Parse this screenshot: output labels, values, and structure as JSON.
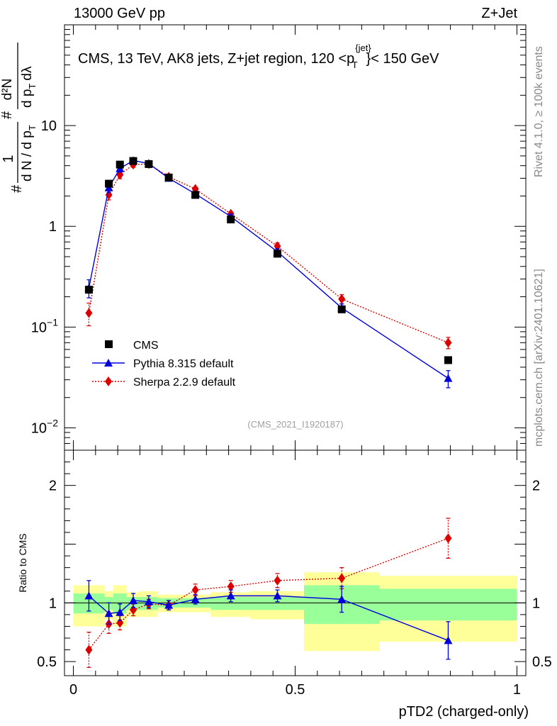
{
  "header": {
    "left": "13000 GeV pp",
    "right": "Z+Jet"
  },
  "side_labels": {
    "rivet": "Rivet 4.1.0, ≥ 100k events",
    "mcplots": "mcplots.cern.ch [arXiv:2401.10621]"
  },
  "chart_data": [
    {
      "type": "scatter",
      "panel": "main",
      "title_parts": {
        "prefix": "CMS, 13 TeV, AK8 jets, Z+jet region, 120 <p",
        "sup": "{jet}",
        "sub": "T",
        "suffix": "}< 150 GeV"
      },
      "ylabel_parts": {
        "hash": "#",
        "frac1": {
          "num": "1",
          "den": "d N / d p",
          "den_sub": "T"
        },
        "hash2": "#",
        "frac2": {
          "num": "d²N",
          "den": "d p",
          "den_sub": "T",
          "den_tail": "dλ"
        }
      },
      "yscale": "log",
      "ylim": [
        0.006,
        100
      ],
      "y_ticks": [
        {
          "value": 0.01,
          "base": "10",
          "exp": "−2"
        },
        {
          "value": 0.1,
          "base": "10",
          "exp": "−1"
        },
        {
          "value": 1,
          "label": "1"
        },
        {
          "value": 10,
          "label": "10"
        }
      ],
      "watermark": "(CMS_2021_I1920187)",
      "legend_position": "lower-left",
      "series": [
        {
          "name": "CMS",
          "color": "#000000",
          "marker": "square",
          "line": "none",
          "x": [
            0.035,
            0.08,
            0.105,
            0.135,
            0.17,
            0.215,
            0.275,
            0.355,
            0.46,
            0.605,
            0.845
          ],
          "y": [
            0.235,
            2.65,
            4.1,
            4.45,
            4.15,
            3.05,
            2.05,
            1.17,
            0.535,
            0.15,
            0.047
          ]
        },
        {
          "name": "Pythia 8.315 default",
          "color": "#0000dd",
          "marker": "triangle",
          "line": "solid",
          "x": [
            0.035,
            0.08,
            0.105,
            0.135,
            0.17,
            0.215,
            0.275,
            0.355,
            0.46,
            0.605,
            0.845
          ],
          "y": [
            0.245,
            2.42,
            3.75,
            4.5,
            4.2,
            3.0,
            2.1,
            1.25,
            0.56,
            0.155,
            0.031
          ],
          "err": [
            0.05,
            0.25,
            0.3,
            0.25,
            0.22,
            0.15,
            0.1,
            0.07,
            0.04,
            0.015,
            0.006
          ]
        },
        {
          "name": "Sherpa 2.2.9 default",
          "color": "#dd0000",
          "marker": "diamond",
          "line": "dotted",
          "x": [
            0.035,
            0.08,
            0.105,
            0.135,
            0.17,
            0.215,
            0.275,
            0.355,
            0.46,
            0.605,
            0.845
          ],
          "y": [
            0.138,
            2.05,
            3.25,
            4.1,
            4.15,
            3.1,
            2.35,
            1.33,
            0.635,
            0.19,
            0.07
          ],
          "err": [
            0.035,
            0.22,
            0.28,
            0.25,
            0.22,
            0.15,
            0.1,
            0.07,
            0.05,
            0.02,
            0.009
          ]
        }
      ]
    },
    {
      "type": "scatter",
      "panel": "ratio",
      "ylabel": "Ratio to CMS",
      "xlabel": "pTD2 (charged-only)",
      "xlim": [
        -0.02,
        1.02
      ],
      "ylim": [
        0.38,
        2.3
      ],
      "x_ticks": [
        {
          "value": 0,
          "label": "0"
        },
        {
          "value": 0.5,
          "label": "0.5"
        },
        {
          "value": 1,
          "label": "1"
        }
      ],
      "y_ticks": [
        {
          "value": 0.5,
          "label": "0.5"
        },
        {
          "value": 1,
          "label": "1"
        },
        {
          "value": 2,
          "label": "2"
        }
      ],
      "bands": {
        "x_edges": [
          0,
          0.07,
          0.09,
          0.12,
          0.15,
          0.19,
          0.24,
          0.31,
          0.4,
          0.52,
          0.69,
          1.0
        ],
        "total_low": [
          0.8,
          0.86,
          0.8,
          0.88,
          0.88,
          0.92,
          0.92,
          0.88,
          0.86,
          0.59,
          0.67
        ],
        "total_high": [
          1.15,
          1.1,
          1.15,
          1.09,
          1.1,
          1.07,
          1.07,
          1.09,
          1.1,
          1.26,
          1.23
        ],
        "stat_low": [
          0.91,
          0.94,
          0.91,
          0.94,
          0.94,
          0.96,
          0.96,
          0.94,
          0.94,
          0.82,
          0.85
        ],
        "stat_high": [
          1.08,
          1.05,
          1.08,
          1.05,
          1.05,
          1.04,
          1.04,
          1.05,
          1.05,
          1.15,
          1.12
        ],
        "total_color": "#ffff99",
        "stat_color": "#99ff99"
      },
      "series": [
        {
          "name": "Pythia 8.315 default",
          "color": "#0000dd",
          "marker": "triangle",
          "line": "solid",
          "x": [
            0.035,
            0.08,
            0.105,
            0.135,
            0.17,
            0.215,
            0.275,
            0.355,
            0.46,
            0.605,
            0.845
          ],
          "y": [
            1.06,
            0.91,
            0.92,
            1.02,
            1.01,
            0.98,
            1.03,
            1.06,
            1.06,
            1.03,
            0.68
          ],
          "err": [
            0.13,
            0.09,
            0.07,
            0.06,
            0.05,
            0.04,
            0.04,
            0.05,
            0.05,
            0.11,
            0.16
          ]
        },
        {
          "name": "Sherpa 2.2.9 default",
          "color": "#dd0000",
          "marker": "diamond",
          "line": "dotted",
          "x": [
            0.035,
            0.08,
            0.105,
            0.135,
            0.17,
            0.215,
            0.275,
            0.355,
            0.46,
            0.605,
            0.845
          ],
          "y": [
            0.6,
            0.82,
            0.83,
            0.94,
            0.99,
            0.98,
            1.11,
            1.14,
            1.19,
            1.21,
            1.55
          ],
          "err": [
            0.15,
            0.08,
            0.06,
            0.05,
            0.04,
            0.04,
            0.05,
            0.05,
            0.06,
            0.09,
            0.17
          ]
        }
      ]
    }
  ]
}
